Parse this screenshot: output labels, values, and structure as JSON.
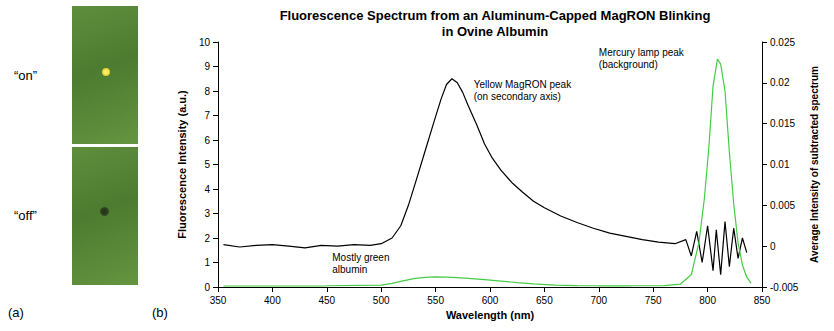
{
  "figure": {
    "panel_labels": [
      "(a)",
      "(b)"
    ],
    "photo": {
      "labels": [
        "“on”",
        "“off”"
      ]
    }
  },
  "chart_data": {
    "type": "line",
    "title": "Fluorescence Spectrum from an Aluminum-Capped MagRON Blinking in Ovine Albumin",
    "x_label": "Wavelength (nm)",
    "y_label": "Fluorescence Intensity (a.u.)",
    "y2_label": "Average Intensity of subtracted spectrum",
    "xlim": [
      350,
      850
    ],
    "xticks": [
      350,
      400,
      450,
      500,
      550,
      600,
      650,
      700,
      750,
      800,
      850
    ],
    "ylim": [
      0,
      10
    ],
    "yticks": [
      0,
      1,
      2,
      3,
      4,
      5,
      6,
      7,
      8,
      9,
      10
    ],
    "y2lim": [
      -0.005,
      0.025
    ],
    "y2ticks": [
      -0.005,
      0,
      0.005,
      0.01,
      0.015,
      0.02,
      0.025
    ],
    "grid": false,
    "series": [
      {
        "color": "#000000",
        "axis": "y2",
        "x": [
          355,
          370,
          385,
          400,
          415,
          430,
          445,
          460,
          475,
          490,
          500,
          510,
          518,
          525,
          532,
          540,
          548,
          555,
          560,
          565,
          570,
          575,
          580,
          588,
          595,
          602,
          610,
          620,
          630,
          640,
          650,
          665,
          680,
          695,
          710,
          725,
          740,
          755,
          770,
          780,
          785,
          790,
          795,
          800,
          805,
          808,
          812,
          816,
          820,
          824,
          828,
          832,
          836
        ],
        "values": [
          0.0002,
          -0.0001,
          0.0001,
          0.0002,
          0,
          -0.0002,
          0.0001,
          0,
          0.0002,
          0.0001,
          0.0003,
          0.001,
          0.0025,
          0.005,
          0.008,
          0.0115,
          0.015,
          0.018,
          0.0198,
          0.0205,
          0.02,
          0.0188,
          0.0172,
          0.0148,
          0.0125,
          0.0108,
          0.0093,
          0.0078,
          0.0066,
          0.0055,
          0.0047,
          0.0037,
          0.0029,
          0.0022,
          0.0016,
          0.0012,
          0.0008,
          0.0005,
          0.0003,
          0.0008,
          -0.0012,
          0.0018,
          -0.002,
          0.0025,
          -0.003,
          0.002,
          -0.0035,
          0.003,
          -0.0025,
          0.0022,
          -0.0015,
          0.001,
          -0.0008
        ]
      },
      {
        "color": "#44cc44",
        "x": [
          355,
          400,
          450,
          500,
          510,
          520,
          530,
          540,
          550,
          560,
          570,
          580,
          595,
          610,
          625,
          640,
          660,
          680,
          700,
          730,
          760,
          775,
          785,
          792,
          797,
          801,
          805,
          809,
          812,
          816,
          820,
          824,
          828,
          832,
          836,
          840
        ],
        "values": [
          0.04,
          0.04,
          0.05,
          0.08,
          0.15,
          0.25,
          0.34,
          0.39,
          0.41,
          0.4,
          0.38,
          0.35,
          0.3,
          0.24,
          0.18,
          0.13,
          0.08,
          0.06,
          0.05,
          0.05,
          0.06,
          0.12,
          0.5,
          1.8,
          3.6,
          5.6,
          8.2,
          9.3,
          9.1,
          8.0,
          5.5,
          3.4,
          1.8,
          0.9,
          0.4,
          0.15
        ]
      }
    ],
    "annotations": [
      "Yellow MagRON peak (on secondary axis)",
      "Mercury lamp peak (background)",
      "Mostly green albumin"
    ]
  }
}
